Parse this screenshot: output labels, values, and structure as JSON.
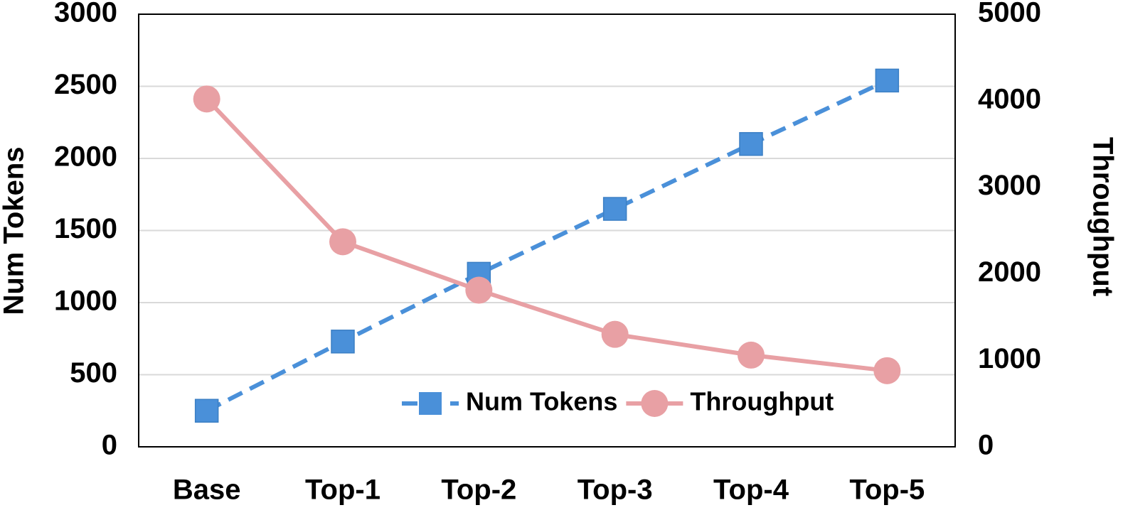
{
  "chart_data": {
    "type": "line",
    "categories": [
      "Base",
      "Top-1",
      "Top-2",
      "Top-3",
      "Top-4",
      "Top-5"
    ],
    "y_label": "Num Tokens",
    "y2_label": "Throughput",
    "series": [
      {
        "name": "Num Tokens",
        "color": "#4a90d9",
        "marker": "square",
        "dashed": true,
        "values": [
          250,
          730,
          1200,
          1650,
          2100,
          2540
        ]
      },
      {
        "name": "Throughput",
        "color": "#e8a0a4",
        "marker": "circle",
        "dashed": false,
        "axis": "y2",
        "values": [
          4020,
          2370,
          1810,
          1300,
          1060,
          880
        ]
      }
    ],
    "ylim": [
      0,
      3000
    ],
    "yticks": [
      0,
      500,
      1000,
      1500,
      2000,
      2500,
      3000
    ],
    "y2lim": [
      0,
      5000
    ],
    "y2ticks": [
      0,
      1000,
      2000,
      3000,
      4000,
      5000
    ],
    "grid": true,
    "legend": "lower right"
  }
}
